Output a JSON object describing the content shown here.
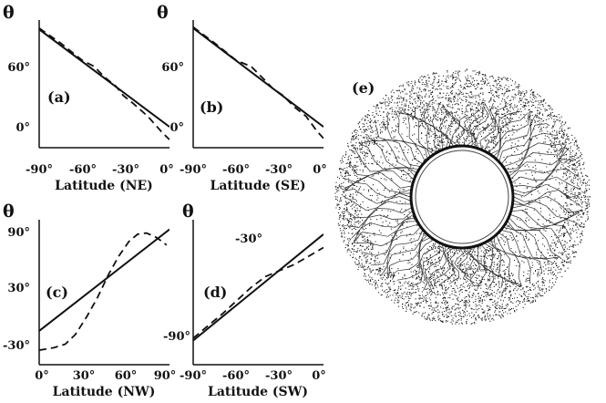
{
  "chart_data": [
    {
      "id": "a",
      "type": "line",
      "panel_label": "(a)",
      "ylabel": "θ",
      "xlabel": "Latitude (NE)",
      "xlim": [
        -90,
        0
      ],
      "ylim": [
        -15,
        95
      ],
      "x_ticks": [
        "-90°",
        "-60°",
        "-30°",
        "0°"
      ],
      "y_ticks": [
        "0°",
        "60°"
      ],
      "series": [
        {
          "style": "solid",
          "x": [
            -90,
            0
          ],
          "y": [
            87,
            3
          ]
        },
        {
          "style": "dashed",
          "x": [
            -90,
            -75,
            -60,
            -52,
            -45,
            -37,
            -32,
            -25,
            -15,
            -5,
            0
          ],
          "y": [
            88,
            75,
            60,
            55,
            46,
            38,
            30,
            23,
            12,
            -2,
            -8
          ]
        }
      ]
    },
    {
      "id": "b",
      "type": "line",
      "panel_label": "(b)",
      "ylabel": "θ",
      "xlabel": "Latitude (SE)",
      "xlim": [
        -90,
        0
      ],
      "ylim": [
        -15,
        95
      ],
      "x_ticks": [
        "-90°",
        "-60°",
        "-30°",
        "0°"
      ],
      "y_ticks": [
        "0°",
        "60°"
      ],
      "series": [
        {
          "style": "solid",
          "x": [
            -90,
            0
          ],
          "y": [
            88,
            3
          ]
        },
        {
          "style": "dashed",
          "x": [
            -90,
            -75,
            -60,
            -50,
            -42,
            -35,
            -28,
            -20,
            -12,
            -5,
            0
          ],
          "y": [
            89,
            75,
            60,
            55,
            45,
            36,
            30,
            20,
            12,
            0,
            -7
          ]
        }
      ]
    },
    {
      "id": "c",
      "type": "line",
      "panel_label": "(c)",
      "ylabel": "θ",
      "xlabel": "Latitude (NW)",
      "xlim": [
        0,
        90
      ],
      "ylim": [
        -30,
        90
      ],
      "x_ticks": [
        "0°",
        "30°",
        "60°",
        "90°"
      ],
      "y_ticks": [
        "-30°",
        "30°",
        "90°"
      ],
      "series": [
        {
          "style": "solid",
          "x": [
            0,
            90
          ],
          "y": [
            -2,
            82
          ]
        },
        {
          "style": "dashed",
          "x": [
            0,
            10,
            18,
            25,
            33,
            40,
            48,
            55,
            62,
            68,
            74,
            80,
            85,
            88
          ],
          "y": [
            -18,
            -16,
            -13,
            -5,
            10,
            25,
            45,
            60,
            72,
            78,
            79,
            76,
            72,
            69
          ]
        }
      ]
    },
    {
      "id": "d",
      "type": "line",
      "panel_label": "(d)",
      "ylabel": "θ",
      "xlabel": "Latitude (SW)",
      "xlim": [
        -90,
        0
      ],
      "ylim": [
        -110,
        10
      ],
      "x_ticks": [
        "-90°",
        "-60°",
        "-30°",
        "0°"
      ],
      "y_ticks": [
        "-90°",
        "-30°"
      ],
      "series": [
        {
          "style": "solid",
          "x": [
            -90,
            0
          ],
          "y": [
            -90,
            -2
          ]
        },
        {
          "style": "dashed",
          "x": [
            -90,
            -80,
            -70,
            -60,
            -50,
            -40,
            -30,
            -20,
            -10,
            0
          ],
          "y": [
            -88,
            -78,
            -68,
            -57,
            -46,
            -37,
            -32,
            -27,
            -20,
            -13
          ]
        }
      ]
    }
  ],
  "figure_e": {
    "panel_label": "(e)"
  }
}
